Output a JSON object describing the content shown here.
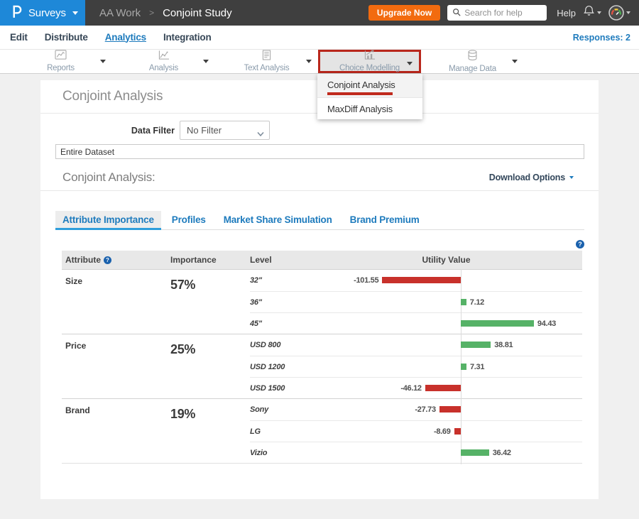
{
  "header": {
    "logo": "P",
    "product_menu": "Surveys",
    "breadcrumb": {
      "folder": "AA Work",
      "separator": ">",
      "current": "Conjoint Study"
    },
    "upgrade_button": "Upgrade Now",
    "search_placeholder": "Search for help",
    "help_label": "Help"
  },
  "nav": {
    "items": [
      "Edit",
      "Distribute",
      "Analytics",
      "Integration"
    ],
    "active": "Analytics",
    "responses_label": "Responses: 2"
  },
  "toolbar": {
    "items": [
      {
        "label": "Reports",
        "icon": "line-chart-icon",
        "highlighted": false
      },
      {
        "label": "Analysis",
        "icon": "trend-chart-icon",
        "highlighted": false
      },
      {
        "label": "Text Analysis",
        "icon": "document-icon",
        "highlighted": false
      },
      {
        "label": "Choice Modelling",
        "icon": "bar-chart-arrow-icon",
        "highlighted": true
      },
      {
        "label": "Manage Data",
        "icon": "database-icon",
        "highlighted": false
      }
    ]
  },
  "dropdown_menu": {
    "items": [
      "Conjoint Analysis",
      "MaxDiff Analysis"
    ],
    "selected": "Conjoint Analysis"
  },
  "page": {
    "title": "Conjoint Analysis",
    "data_filter_label": "Data Filter",
    "data_filter_value": "No Filter",
    "dataset_value": "Entire Dataset",
    "section_title": "Conjoint Analysis:",
    "download_options_label": "Download Options",
    "tabs": [
      "Attribute Importance",
      "Profiles",
      "Market Share Simulation",
      "Brand Premium"
    ],
    "active_tab": "Attribute Importance"
  },
  "table": {
    "columns": [
      "Attribute",
      "Importance",
      "Level",
      "Utility Value"
    ],
    "groups": [
      {
        "attribute": "Size",
        "importance": "57%",
        "levels": [
          {
            "name": "32\"",
            "value": -101.55
          },
          {
            "name": "36\"",
            "value": 7.12
          },
          {
            "name": "45\"",
            "value": 94.43
          }
        ]
      },
      {
        "attribute": "Price",
        "importance": "25%",
        "levels": [
          {
            "name": "USD 800",
            "value": 38.81
          },
          {
            "name": "USD 1200",
            "value": 7.31
          },
          {
            "name": "USD 1500",
            "value": -46.12
          }
        ]
      },
      {
        "attribute": "Brand",
        "importance": "19%",
        "levels": [
          {
            "name": "Sony",
            "value": -27.73
          },
          {
            "name": "LG",
            "value": -8.69
          },
          {
            "name": "Vizio",
            "value": 36.42
          }
        ]
      }
    ]
  },
  "colors": {
    "positive_bar": "#56b267",
    "negative_bar": "#c8312b",
    "accent_blue": "#1e7bbd",
    "annotation_red": "#b9271c",
    "brand_blue": "#1e88d8",
    "upgrade_orange": "#f26b0f"
  }
}
